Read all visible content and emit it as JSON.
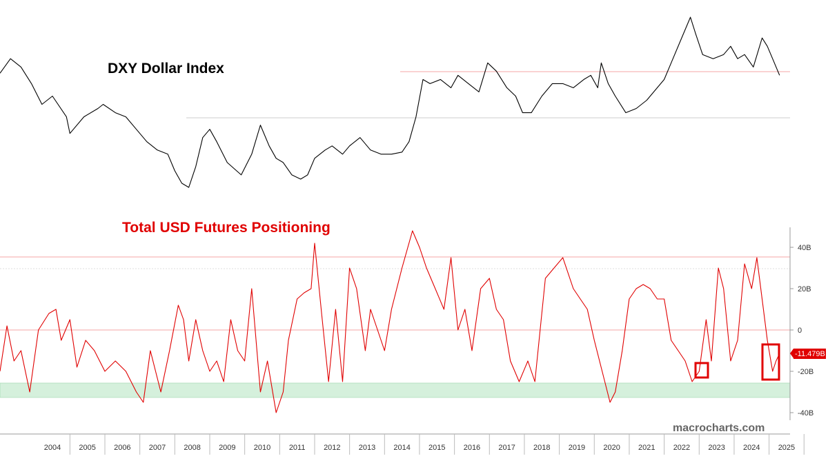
{
  "chart_data": [
    {
      "type": "line",
      "title": "DXY Dollar Index",
      "color": "#000000",
      "x": [
        2003.0,
        2003.3,
        2003.6,
        2003.9,
        2004.2,
        2004.5,
        2004.9,
        2005.0,
        2005.4,
        2005.8,
        2005.95,
        2006.3,
        2006.6,
        2006.9,
        2007.2,
        2007.5,
        2007.8,
        2008.0,
        2008.2,
        2008.4,
        2008.6,
        2008.8,
        2009.0,
        2009.2,
        2009.5,
        2009.9,
        2010.2,
        2010.45,
        2010.7,
        2010.9,
        2011.1,
        2011.35,
        2011.6,
        2011.8,
        2012.0,
        2012.3,
        2012.5,
        2012.8,
        2013.0,
        2013.3,
        2013.6,
        2013.9,
        2014.2,
        2014.5,
        2014.7,
        2014.9,
        2015.1,
        2015.3,
        2015.6,
        2015.9,
        2016.1,
        2016.4,
        2016.7,
        2016.95,
        2017.2,
        2017.5,
        2017.75,
        2017.95,
        2018.2,
        2018.5,
        2018.8,
        2019.1,
        2019.4,
        2019.7,
        2019.9,
        2020.1,
        2020.2,
        2020.4,
        2020.6,
        2020.9,
        2021.2,
        2021.5,
        2021.8,
        2022.0,
        2022.2,
        2022.5,
        2022.75,
        2022.9,
        2023.1,
        2023.4,
        2023.7,
        2023.9,
        2024.1,
        2024.3,
        2024.55,
        2024.8,
        2024.95,
        2025.1,
        2025.3
      ],
      "y": [
        99.5,
        103,
        101,
        97,
        92,
        94,
        89,
        85,
        89,
        91,
        92,
        90,
        89,
        86,
        83,
        81,
        80,
        76,
        73,
        72,
        77,
        84,
        86,
        83,
        78,
        75,
        80,
        87,
        82,
        79,
        78,
        75,
        74,
        75,
        79,
        81,
        82,
        80,
        82,
        84,
        81,
        80,
        80,
        80.5,
        83,
        89,
        98,
        97,
        98,
        96,
        99,
        97,
        95,
        102,
        100,
        96,
        94,
        90,
        90,
        94,
        97,
        97,
        96,
        98,
        99,
        96,
        102,
        97,
        94,
        90,
        91,
        93,
        96,
        98,
        102,
        108,
        113,
        109,
        104,
        103,
        104,
        106,
        103,
        104,
        101,
        108,
        106,
        103,
        99
      ]
    },
    {
      "type": "line",
      "title": "Total USD Futures Positioning",
      "color": "#e00000",
      "x": [
        2003.0,
        2003.2,
        2003.4,
        2003.6,
        2003.85,
        2004.1,
        2004.4,
        2004.6,
        2004.75,
        2005.0,
        2005.2,
        2005.45,
        2005.7,
        2006.0,
        2006.3,
        2006.6,
        2006.9,
        2007.1,
        2007.3,
        2007.6,
        2007.85,
        2008.1,
        2008.25,
        2008.4,
        2008.6,
        2008.8,
        2009.0,
        2009.2,
        2009.4,
        2009.6,
        2009.8,
        2010.0,
        2010.2,
        2010.45,
        2010.65,
        2010.9,
        2011.1,
        2011.25,
        2011.5,
        2011.7,
        2011.9,
        2012.0,
        2012.2,
        2012.4,
        2012.6,
        2012.8,
        2013.0,
        2013.2,
        2013.45,
        2013.6,
        2013.8,
        2014.0,
        2014.2,
        2014.5,
        2014.8,
        2015.0,
        2015.2,
        2015.45,
        2015.7,
        2015.9,
        2016.1,
        2016.3,
        2016.5,
        2016.75,
        2017.0,
        2017.2,
        2017.4,
        2017.6,
        2017.85,
        2018.1,
        2018.3,
        2018.6,
        2018.85,
        2019.1,
        2019.4,
        2019.6,
        2019.8,
        2020.0,
        2020.15,
        2020.3,
        2020.45,
        2020.6,
        2020.8,
        2021.0,
        2021.2,
        2021.4,
        2021.6,
        2021.8,
        2022.0,
        2022.2,
        2022.4,
        2022.6,
        2022.8,
        2023.0,
        2023.2,
        2023.35,
        2023.55,
        2023.7,
        2023.9,
        2024.1,
        2024.3,
        2024.5,
        2024.65,
        2024.8,
        2024.95,
        2025.1,
        2025.2,
        2025.3
      ],
      "y": [
        -20,
        2,
        -15,
        -10,
        -30,
        0,
        8,
        10,
        -5,
        5,
        -18,
        -5,
        -10,
        -20,
        -15,
        -20,
        -30,
        -35,
        -10,
        -30,
        -10,
        12,
        5,
        -15,
        5,
        -10,
        -20,
        -15,
        -25,
        5,
        -10,
        -15,
        20,
        -30,
        -15,
        -40,
        -30,
        -5,
        15,
        18,
        20,
        42,
        8,
        -25,
        10,
        -25,
        30,
        20,
        -10,
        10,
        0,
        -10,
        10,
        30,
        48,
        40,
        30,
        20,
        10,
        35,
        0,
        10,
        -10,
        20,
        25,
        10,
        5,
        -15,
        -25,
        -15,
        -25,
        25,
        30,
        35,
        20,
        15,
        10,
        -5,
        -15,
        -25,
        -35,
        -30,
        -10,
        15,
        20,
        22,
        20,
        15,
        15,
        -5,
        -10,
        -15,
        -25,
        -20,
        5,
        -15,
        30,
        20,
        -15,
        -5,
        32,
        20,
        35,
        15,
        -5,
        -20,
        -15,
        -11.479
      ],
      "y_ticks": [
        "40B",
        "20B",
        "0",
        "-20B",
        "-40B"
      ],
      "last_value_label": "-11.479B"
    }
  ],
  "x_axis_years": [
    "2004",
    "2005",
    "2006",
    "2007",
    "2008",
    "2009",
    "2010",
    "2011",
    "2012",
    "2013",
    "2014",
    "2015",
    "2016",
    "2017",
    "2018",
    "2019",
    "2020",
    "2021",
    "2022",
    "2023",
    "2024",
    "2025"
  ],
  "watermark": "macrocharts.com",
  "colors": {
    "dxy_line": "#000000",
    "positioning_line": "#e00000",
    "reference_line": "#f4a6a6",
    "grid_line": "#cccccc",
    "extreme_band": "#d5f0dc",
    "highlight_box": "#e00000"
  }
}
